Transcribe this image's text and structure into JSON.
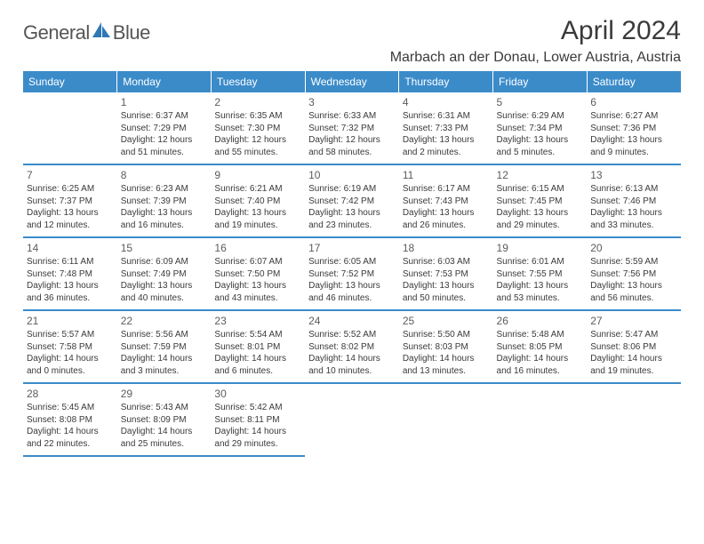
{
  "brand": {
    "word1": "General",
    "word2": "Blue"
  },
  "title": "April 2024",
  "location": "Marbach an der Donau, Lower Austria, Austria",
  "colors": {
    "header_bg": "#3b8bc9",
    "header_text": "#ffffff",
    "row_divider": "#3b8bc9",
    "body_text": "#3a3a3a",
    "brand_accent": "#2f77b5"
  },
  "day_headers": [
    "Sunday",
    "Monday",
    "Tuesday",
    "Wednesday",
    "Thursday",
    "Friday",
    "Saturday"
  ],
  "weeks": [
    [
      null,
      {
        "n": "1",
        "sr": "6:37 AM",
        "ss": "7:29 PM",
        "dl": "12 hours and 51 minutes."
      },
      {
        "n": "2",
        "sr": "6:35 AM",
        "ss": "7:30 PM",
        "dl": "12 hours and 55 minutes."
      },
      {
        "n": "3",
        "sr": "6:33 AM",
        "ss": "7:32 PM",
        "dl": "12 hours and 58 minutes."
      },
      {
        "n": "4",
        "sr": "6:31 AM",
        "ss": "7:33 PM",
        "dl": "13 hours and 2 minutes."
      },
      {
        "n": "5",
        "sr": "6:29 AM",
        "ss": "7:34 PM",
        "dl": "13 hours and 5 minutes."
      },
      {
        "n": "6",
        "sr": "6:27 AM",
        "ss": "7:36 PM",
        "dl": "13 hours and 9 minutes."
      }
    ],
    [
      {
        "n": "7",
        "sr": "6:25 AM",
        "ss": "7:37 PM",
        "dl": "13 hours and 12 minutes."
      },
      {
        "n": "8",
        "sr": "6:23 AM",
        "ss": "7:39 PM",
        "dl": "13 hours and 16 minutes."
      },
      {
        "n": "9",
        "sr": "6:21 AM",
        "ss": "7:40 PM",
        "dl": "13 hours and 19 minutes."
      },
      {
        "n": "10",
        "sr": "6:19 AM",
        "ss": "7:42 PM",
        "dl": "13 hours and 23 minutes."
      },
      {
        "n": "11",
        "sr": "6:17 AM",
        "ss": "7:43 PM",
        "dl": "13 hours and 26 minutes."
      },
      {
        "n": "12",
        "sr": "6:15 AM",
        "ss": "7:45 PM",
        "dl": "13 hours and 29 minutes."
      },
      {
        "n": "13",
        "sr": "6:13 AM",
        "ss": "7:46 PM",
        "dl": "13 hours and 33 minutes."
      }
    ],
    [
      {
        "n": "14",
        "sr": "6:11 AM",
        "ss": "7:48 PM",
        "dl": "13 hours and 36 minutes."
      },
      {
        "n": "15",
        "sr": "6:09 AM",
        "ss": "7:49 PM",
        "dl": "13 hours and 40 minutes."
      },
      {
        "n": "16",
        "sr": "6:07 AM",
        "ss": "7:50 PM",
        "dl": "13 hours and 43 minutes."
      },
      {
        "n": "17",
        "sr": "6:05 AM",
        "ss": "7:52 PM",
        "dl": "13 hours and 46 minutes."
      },
      {
        "n": "18",
        "sr": "6:03 AM",
        "ss": "7:53 PM",
        "dl": "13 hours and 50 minutes."
      },
      {
        "n": "19",
        "sr": "6:01 AM",
        "ss": "7:55 PM",
        "dl": "13 hours and 53 minutes."
      },
      {
        "n": "20",
        "sr": "5:59 AM",
        "ss": "7:56 PM",
        "dl": "13 hours and 56 minutes."
      }
    ],
    [
      {
        "n": "21",
        "sr": "5:57 AM",
        "ss": "7:58 PM",
        "dl": "14 hours and 0 minutes."
      },
      {
        "n": "22",
        "sr": "5:56 AM",
        "ss": "7:59 PM",
        "dl": "14 hours and 3 minutes."
      },
      {
        "n": "23",
        "sr": "5:54 AM",
        "ss": "8:01 PM",
        "dl": "14 hours and 6 minutes."
      },
      {
        "n": "24",
        "sr": "5:52 AM",
        "ss": "8:02 PM",
        "dl": "14 hours and 10 minutes."
      },
      {
        "n": "25",
        "sr": "5:50 AM",
        "ss": "8:03 PM",
        "dl": "14 hours and 13 minutes."
      },
      {
        "n": "26",
        "sr": "5:48 AM",
        "ss": "8:05 PM",
        "dl": "14 hours and 16 minutes."
      },
      {
        "n": "27",
        "sr": "5:47 AM",
        "ss": "8:06 PM",
        "dl": "14 hours and 19 minutes."
      }
    ],
    [
      {
        "n": "28",
        "sr": "5:45 AM",
        "ss": "8:08 PM",
        "dl": "14 hours and 22 minutes."
      },
      {
        "n": "29",
        "sr": "5:43 AM",
        "ss": "8:09 PM",
        "dl": "14 hours and 25 minutes."
      },
      {
        "n": "30",
        "sr": "5:42 AM",
        "ss": "8:11 PM",
        "dl": "14 hours and 29 minutes."
      },
      null,
      null,
      null,
      null
    ]
  ],
  "labels": {
    "sunrise_prefix": "Sunrise: ",
    "sunset_prefix": "Sunset: ",
    "daylight_prefix": "Daylight: "
  }
}
